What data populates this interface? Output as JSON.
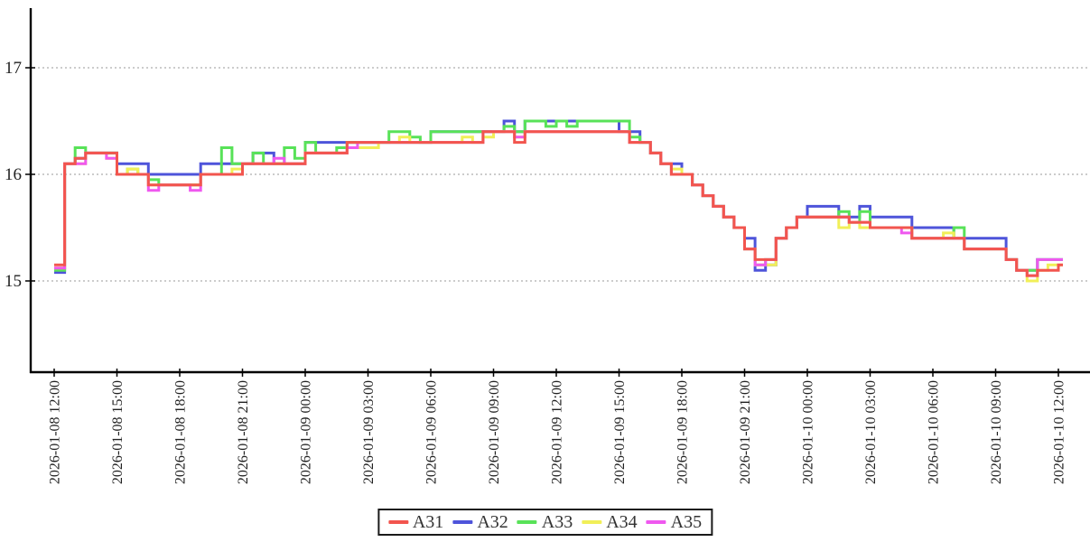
{
  "chart_data": {
    "type": "line",
    "style": "step-after",
    "title": "",
    "xlabel": "",
    "ylabel": "",
    "grid": "horizontal-dotted",
    "background": "#ffffff",
    "axis_color": "#000000",
    "grid_color": "#999999",
    "y_axis": {
      "ticks": [
        15,
        16,
        17
      ],
      "range_shown": [
        14.15,
        17.55
      ]
    },
    "x_axis": {
      "start": "2026-01-08 12:00",
      "end": "2026-01-10 12:00",
      "tick_interval_hours": 3,
      "tick_labels": [
        "2026-01-08 12:00",
        "2026-01-08 15:00",
        "2026-01-08 18:00",
        "2026-01-08 21:00",
        "2026-01-09 00:00",
        "2026-01-09 03:00",
        "2026-01-09 06:00",
        "2026-01-09 09:00",
        "2026-01-09 12:00",
        "2026-01-09 15:00",
        "2026-01-09 18:00",
        "2026-01-09 21:00",
        "2026-01-10 00:00",
        "2026-01-10 03:00",
        "2026-01-10 06:00",
        "2026-01-10 09:00",
        "2026-01-10 12:00"
      ]
    },
    "sample_interval_hours": 0.5,
    "legend": {
      "position": "bottom-center",
      "entries": [
        "A31",
        "A32",
        "A33",
        "A34",
        "A35"
      ]
    },
    "series": [
      {
        "name": "A31",
        "color": "#f2554e",
        "values": [
          15.15,
          16.1,
          16.15,
          16.2,
          16.2,
          16.2,
          16.0,
          16.0,
          16.0,
          15.9,
          15.9,
          15.9,
          15.9,
          15.9,
          16.0,
          16.0,
          16.0,
          16.0,
          16.1,
          16.1,
          16.1,
          16.1,
          16.1,
          16.1,
          16.2,
          16.2,
          16.2,
          16.2,
          16.3,
          16.3,
          16.3,
          16.3,
          16.3,
          16.3,
          16.3,
          16.3,
          16.3,
          16.3,
          16.3,
          16.3,
          16.3,
          16.4,
          16.4,
          16.4,
          16.3,
          16.4,
          16.4,
          16.4,
          16.4,
          16.4,
          16.4,
          16.4,
          16.4,
          16.4,
          16.4,
          16.3,
          16.3,
          16.2,
          16.1,
          16.0,
          16.0,
          15.9,
          15.8,
          15.7,
          15.6,
          15.5,
          15.3,
          15.2,
          15.2,
          15.4,
          15.5,
          15.6,
          15.6,
          15.6,
          15.6,
          15.6,
          15.55,
          15.55,
          15.5,
          15.5,
          15.5,
          15.5,
          15.4,
          15.4,
          15.4,
          15.4,
          15.4,
          15.3,
          15.3,
          15.3,
          15.3,
          15.2,
          15.1,
          15.05,
          15.1,
          15.1,
          15.15
        ]
      },
      {
        "name": "A32",
        "color": "#4e54da",
        "values": [
          15.08,
          16.1,
          16.15,
          16.2,
          16.2,
          16.2,
          16.1,
          16.1,
          16.1,
          16.0,
          16.0,
          16.0,
          16.0,
          16.0,
          16.1,
          16.1,
          16.1,
          16.1,
          16.1,
          16.2,
          16.2,
          16.1,
          16.1,
          16.1,
          16.3,
          16.3,
          16.3,
          16.3,
          16.3,
          16.3,
          16.3,
          16.3,
          16.3,
          16.3,
          16.3,
          16.3,
          16.4,
          16.4,
          16.4,
          16.4,
          16.4,
          16.4,
          16.4,
          16.5,
          16.4,
          16.5,
          16.5,
          16.5,
          16.5,
          16.5,
          16.5,
          16.5,
          16.5,
          16.5,
          16.4,
          16.4,
          16.3,
          16.2,
          16.1,
          16.1,
          16.0,
          15.9,
          15.8,
          15.7,
          15.6,
          15.5,
          15.4,
          15.1,
          15.15,
          15.4,
          15.5,
          15.6,
          15.7,
          15.7,
          15.7,
          15.6,
          15.6,
          15.7,
          15.6,
          15.6,
          15.6,
          15.6,
          15.5,
          15.5,
          15.5,
          15.5,
          15.4,
          15.4,
          15.4,
          15.4,
          15.4,
          15.2,
          15.1,
          15.1,
          15.2,
          15.2,
          15.2
        ]
      },
      {
        "name": "A33",
        "color": "#58e258",
        "values": [
          15.1,
          16.1,
          16.25,
          16.2,
          16.2,
          16.2,
          16.0,
          16.05,
          16.0,
          15.95,
          15.9,
          15.9,
          15.9,
          15.9,
          16.0,
          16.0,
          16.25,
          16.1,
          16.1,
          16.2,
          16.1,
          16.1,
          16.25,
          16.15,
          16.3,
          16.2,
          16.2,
          16.25,
          16.3,
          16.3,
          16.3,
          16.3,
          16.4,
          16.4,
          16.35,
          16.3,
          16.4,
          16.4,
          16.4,
          16.4,
          16.4,
          16.4,
          16.4,
          16.45,
          16.4,
          16.5,
          16.5,
          16.45,
          16.5,
          16.45,
          16.5,
          16.5,
          16.5,
          16.5,
          16.5,
          16.35,
          16.3,
          16.2,
          16.1,
          16.0,
          16.0,
          15.9,
          15.8,
          15.7,
          15.6,
          15.5,
          15.3,
          15.15,
          15.2,
          15.4,
          15.5,
          15.6,
          15.6,
          15.6,
          15.6,
          15.65,
          15.55,
          15.65,
          15.5,
          15.5,
          15.5,
          15.5,
          15.4,
          15.4,
          15.4,
          15.4,
          15.5,
          15.3,
          15.3,
          15.3,
          15.3,
          15.2,
          15.1,
          15.1,
          15.2,
          15.2,
          15.2
        ]
      },
      {
        "name": "A34",
        "color": "#f1ef58",
        "values": [
          15.12,
          16.1,
          16.1,
          16.2,
          16.2,
          16.15,
          16.0,
          16.05,
          16.0,
          15.9,
          15.9,
          15.9,
          15.9,
          15.9,
          16.0,
          16.0,
          16.0,
          16.05,
          16.1,
          16.1,
          16.1,
          16.1,
          16.1,
          16.1,
          16.2,
          16.2,
          16.2,
          16.2,
          16.25,
          16.25,
          16.25,
          16.3,
          16.3,
          16.35,
          16.3,
          16.3,
          16.3,
          16.3,
          16.3,
          16.35,
          16.3,
          16.35,
          16.4,
          16.4,
          16.35,
          16.4,
          16.4,
          16.4,
          16.4,
          16.4,
          16.4,
          16.4,
          16.4,
          16.4,
          16.4,
          16.3,
          16.3,
          16.2,
          16.1,
          16.05,
          16.0,
          15.9,
          15.8,
          15.7,
          15.6,
          15.5,
          15.3,
          15.15,
          15.15,
          15.4,
          15.5,
          15.6,
          15.6,
          15.6,
          15.6,
          15.5,
          15.55,
          15.5,
          15.5,
          15.5,
          15.5,
          15.5,
          15.4,
          15.4,
          15.4,
          15.45,
          15.4,
          15.3,
          15.3,
          15.3,
          15.3,
          15.2,
          15.1,
          15.0,
          15.1,
          15.15,
          15.15
        ]
      },
      {
        "name": "A35",
        "color": "#ef58ef",
        "values": [
          15.12,
          16.1,
          16.1,
          16.2,
          16.2,
          16.15,
          16.0,
          16.0,
          16.0,
          15.85,
          15.9,
          15.9,
          15.9,
          15.85,
          16.0,
          16.0,
          16.0,
          16.0,
          16.1,
          16.1,
          16.1,
          16.15,
          16.1,
          16.1,
          16.2,
          16.2,
          16.2,
          16.2,
          16.25,
          16.3,
          16.3,
          16.3,
          16.3,
          16.3,
          16.3,
          16.3,
          16.3,
          16.3,
          16.3,
          16.3,
          16.3,
          16.4,
          16.4,
          16.4,
          16.35,
          16.4,
          16.4,
          16.4,
          16.4,
          16.4,
          16.4,
          16.4,
          16.4,
          16.4,
          16.4,
          16.3,
          16.3,
          16.2,
          16.1,
          16.0,
          16.0,
          15.9,
          15.8,
          15.7,
          15.6,
          15.5,
          15.3,
          15.15,
          15.2,
          15.4,
          15.5,
          15.6,
          15.6,
          15.6,
          15.6,
          15.6,
          15.55,
          15.55,
          15.5,
          15.5,
          15.5,
          15.45,
          15.4,
          15.4,
          15.4,
          15.4,
          15.4,
          15.3,
          15.3,
          15.3,
          15.3,
          15.2,
          15.1,
          15.05,
          15.2,
          15.2,
          15.2
        ]
      }
    ]
  }
}
